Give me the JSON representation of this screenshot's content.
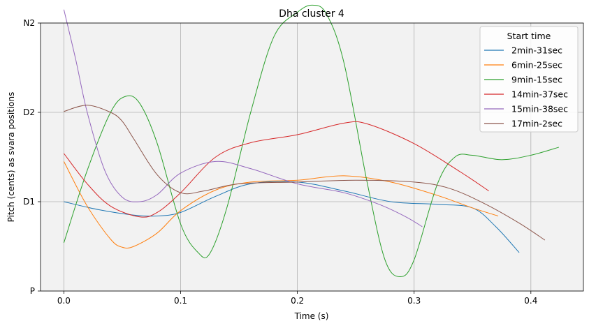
{
  "chart_data": {
    "type": "line",
    "title": "Dha cluster 4",
    "xlabel": "Time (s)",
    "ylabel": "Pitch (cents) as svara positions",
    "xlim": [
      -0.02,
      0.445
    ],
    "ylim": [
      0,
      3.0
    ],
    "xticks": [
      0.0,
      0.1,
      0.2,
      0.3,
      0.4
    ],
    "xtick_labels": [
      "0.0",
      "0.1",
      "0.2",
      "0.3",
      "0.4"
    ],
    "yticks": [
      0,
      1,
      2,
      3
    ],
    "ytick_labels": [
      "P",
      "D1",
      "D2",
      "N2"
    ],
    "grid": true,
    "background": "#f2f2f2",
    "legend": {
      "title": "Start time",
      "position": "top-right"
    },
    "series": [
      {
        "name": "2min-31sec",
        "color": "#1f77b4",
        "x": [
          0,
          0.03,
          0.06,
          0.08,
          0.1,
          0.13,
          0.16,
          0.2,
          0.24,
          0.28,
          0.32,
          0.35,
          0.37,
          0.39
        ],
        "y": [
          1.0,
          0.91,
          0.85,
          0.84,
          0.88,
          1.06,
          1.2,
          1.22,
          1.12,
          1.0,
          0.97,
          0.93,
          0.72,
          0.43
        ]
      },
      {
        "name": "6min-25sec",
        "color": "#ff7f0e",
        "x": [
          0,
          0.02,
          0.04,
          0.05,
          0.06,
          0.08,
          0.1,
          0.13,
          0.16,
          0.2,
          0.24,
          0.28,
          0.32,
          0.35,
          0.372
        ],
        "y": [
          1.45,
          0.95,
          0.58,
          0.49,
          0.5,
          0.65,
          0.9,
          1.13,
          1.22,
          1.24,
          1.29,
          1.22,
          1.07,
          0.93,
          0.84
        ]
      },
      {
        "name": "9min-15sec",
        "color": "#2ca02c",
        "x": [
          0,
          0.02,
          0.04,
          0.053,
          0.065,
          0.08,
          0.1,
          0.115,
          0.125,
          0.14,
          0.16,
          0.18,
          0.2,
          0.213,
          0.225,
          0.24,
          0.26,
          0.275,
          0.288,
          0.3,
          0.32,
          0.335,
          0.35,
          0.375,
          0.4,
          0.424
        ],
        "y": [
          0.54,
          1.35,
          2.0,
          2.18,
          2.1,
          1.65,
          0.75,
          0.43,
          0.42,
          0.95,
          2.0,
          2.85,
          3.12,
          3.2,
          3.1,
          2.55,
          1.2,
          0.35,
          0.16,
          0.35,
          1.2,
          1.5,
          1.52,
          1.47,
          1.52,
          1.61
        ]
      },
      {
        "name": "14min-37sec",
        "color": "#d62728",
        "x": [
          0,
          0.02,
          0.04,
          0.065,
          0.08,
          0.1,
          0.13,
          0.16,
          0.2,
          0.24,
          0.26,
          0.3,
          0.34,
          0.364
        ],
        "y": [
          1.54,
          1.2,
          0.95,
          0.83,
          0.88,
          1.1,
          1.5,
          1.66,
          1.75,
          1.88,
          1.87,
          1.65,
          1.33,
          1.12
        ]
      },
      {
        "name": "15min-38sec",
        "color": "#9467bd",
        "x": [
          0,
          0.01,
          0.02,
          0.035,
          0.05,
          0.065,
          0.08,
          0.1,
          0.13,
          0.16,
          0.2,
          0.24,
          0.27,
          0.293,
          0.307
        ],
        "y": [
          3.15,
          2.6,
          2.0,
          1.35,
          1.05,
          1.0,
          1.08,
          1.32,
          1.45,
          1.37,
          1.2,
          1.1,
          0.97,
          0.83,
          0.72
        ]
      },
      {
        "name": "17min-2sec",
        "color": "#8c564b",
        "x": [
          0,
          0.02,
          0.04,
          0.05,
          0.06,
          0.08,
          0.1,
          0.12,
          0.15,
          0.2,
          0.25,
          0.3,
          0.33,
          0.36,
          0.39,
          0.412
        ],
        "y": [
          2.01,
          2.08,
          2.0,
          1.9,
          1.7,
          1.3,
          1.1,
          1.12,
          1.2,
          1.22,
          1.24,
          1.22,
          1.15,
          0.98,
          0.76,
          0.57
        ]
      }
    ]
  }
}
